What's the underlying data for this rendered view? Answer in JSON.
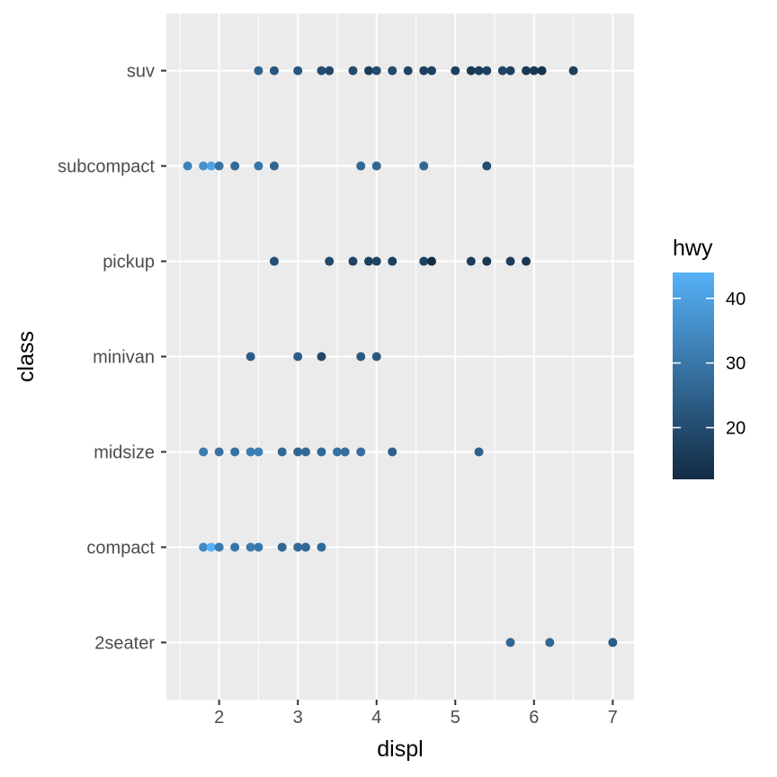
{
  "chart_data": {
    "type": "scatter",
    "xlabel": "displ",
    "ylabel": "class",
    "xlim": [
      1.33,
      7.27
    ],
    "x_ticks": [
      2,
      3,
      4,
      5,
      6,
      7
    ],
    "x_minor_ticks": [
      1.5,
      2.5,
      3.5,
      4.5,
      5.5,
      6.5
    ],
    "categories": [
      "2seater",
      "compact",
      "midsize",
      "minivan",
      "pickup",
      "subcompact",
      "suv"
    ],
    "grid": true,
    "panel_background": "#EBEBEB",
    "grid_color": "#FFFFFF",
    "legend": {
      "title": "hwy",
      "position": "right",
      "type": "colorbar",
      "range": [
        12,
        44
      ],
      "ticks": [
        20,
        30,
        40
      ],
      "low_color": "#132B43",
      "high_color": "#56B1F7"
    },
    "points": [
      {
        "x": 5.7,
        "y": "2seater",
        "hwy": 26
      },
      {
        "x": 6.2,
        "y": "2seater",
        "hwy": 26
      },
      {
        "x": 7.0,
        "y": "2seater",
        "hwy": 24
      },
      {
        "x": 1.8,
        "y": "compact",
        "hwy": 35
      },
      {
        "x": 1.9,
        "y": "compact",
        "hwy": 44
      },
      {
        "x": 2.0,
        "y": "compact",
        "hwy": 31
      },
      {
        "x": 2.2,
        "y": "compact",
        "hwy": 30
      },
      {
        "x": 2.4,
        "y": "compact",
        "hwy": 31
      },
      {
        "x": 2.5,
        "y": "compact",
        "hwy": 30
      },
      {
        "x": 2.8,
        "y": "compact",
        "hwy": 26
      },
      {
        "x": 3.0,
        "y": "compact",
        "hwy": 27
      },
      {
        "x": 3.1,
        "y": "compact",
        "hwy": 26
      },
      {
        "x": 3.3,
        "y": "compact",
        "hwy": 27
      },
      {
        "x": 1.8,
        "y": "midsize",
        "hwy": 31
      },
      {
        "x": 2.0,
        "y": "midsize",
        "hwy": 29
      },
      {
        "x": 2.2,
        "y": "midsize",
        "hwy": 29
      },
      {
        "x": 2.4,
        "y": "midsize",
        "hwy": 31
      },
      {
        "x": 2.5,
        "y": "midsize",
        "hwy": 32
      },
      {
        "x": 2.8,
        "y": "midsize",
        "hwy": 27
      },
      {
        "x": 3.0,
        "y": "midsize",
        "hwy": 26
      },
      {
        "x": 3.1,
        "y": "midsize",
        "hwy": 27
      },
      {
        "x": 3.3,
        "y": "midsize",
        "hwy": 27
      },
      {
        "x": 3.5,
        "y": "midsize",
        "hwy": 29
      },
      {
        "x": 3.6,
        "y": "midsize",
        "hwy": 28
      },
      {
        "x": 3.8,
        "y": "midsize",
        "hwy": 28
      },
      {
        "x": 4.2,
        "y": "midsize",
        "hwy": 25
      },
      {
        "x": 5.3,
        "y": "midsize",
        "hwy": 25
      },
      {
        "x": 2.4,
        "y": "minivan",
        "hwy": 24
      },
      {
        "x": 3.0,
        "y": "minivan",
        "hwy": 24
      },
      {
        "x": 3.3,
        "y": "minivan",
        "hwy": 19
      },
      {
        "x": 3.8,
        "y": "minivan",
        "hwy": 23
      },
      {
        "x": 4.0,
        "y": "minivan",
        "hwy": 23
      },
      {
        "x": 2.7,
        "y": "pickup",
        "hwy": 20
      },
      {
        "x": 3.4,
        "y": "pickup",
        "hwy": 19
      },
      {
        "x": 3.7,
        "y": "pickup",
        "hwy": 18
      },
      {
        "x": 3.9,
        "y": "pickup",
        "hwy": 17
      },
      {
        "x": 4.0,
        "y": "pickup",
        "hwy": 18
      },
      {
        "x": 4.2,
        "y": "pickup",
        "hwy": 17
      },
      {
        "x": 4.6,
        "y": "pickup",
        "hwy": 17
      },
      {
        "x": 4.7,
        "y": "pickup",
        "hwy": 12
      },
      {
        "x": 5.2,
        "y": "pickup",
        "hwy": 16
      },
      {
        "x": 5.4,
        "y": "pickup",
        "hwy": 15
      },
      {
        "x": 5.7,
        "y": "pickup",
        "hwy": 16
      },
      {
        "x": 5.9,
        "y": "pickup",
        "hwy": 15
      },
      {
        "x": 1.6,
        "y": "subcompact",
        "hwy": 33
      },
      {
        "x": 1.8,
        "y": "subcompact",
        "hwy": 36
      },
      {
        "x": 1.9,
        "y": "subcompact",
        "hwy": 41
      },
      {
        "x": 2.0,
        "y": "subcompact",
        "hwy": 29
      },
      {
        "x": 2.2,
        "y": "subcompact",
        "hwy": 27
      },
      {
        "x": 2.5,
        "y": "subcompact",
        "hwy": 30
      },
      {
        "x": 2.7,
        "y": "subcompact",
        "hwy": 26
      },
      {
        "x": 3.8,
        "y": "subcompact",
        "hwy": 26
      },
      {
        "x": 4.0,
        "y": "subcompact",
        "hwy": 26
      },
      {
        "x": 4.6,
        "y": "subcompact",
        "hwy": 26
      },
      {
        "x": 5.4,
        "y": "subcompact",
        "hwy": 20
      },
      {
        "x": 2.5,
        "y": "suv",
        "hwy": 25
      },
      {
        "x": 2.7,
        "y": "suv",
        "hwy": 22
      },
      {
        "x": 3.0,
        "y": "suv",
        "hwy": 22
      },
      {
        "x": 3.3,
        "y": "suv",
        "hwy": 20
      },
      {
        "x": 3.4,
        "y": "suv",
        "hwy": 19
      },
      {
        "x": 3.7,
        "y": "suv",
        "hwy": 19
      },
      {
        "x": 3.9,
        "y": "suv",
        "hwy": 16
      },
      {
        "x": 4.0,
        "y": "suv",
        "hwy": 20
      },
      {
        "x": 4.2,
        "y": "suv",
        "hwy": 19
      },
      {
        "x": 4.4,
        "y": "suv",
        "hwy": 18
      },
      {
        "x": 4.6,
        "y": "suv",
        "hwy": 17
      },
      {
        "x": 4.7,
        "y": "suv",
        "hwy": 17
      },
      {
        "x": 5.0,
        "y": "suv",
        "hwy": 17
      },
      {
        "x": 5.2,
        "y": "suv",
        "hwy": 15
      },
      {
        "x": 5.3,
        "y": "suv",
        "hwy": 16
      },
      {
        "x": 5.4,
        "y": "suv",
        "hwy": 17
      },
      {
        "x": 5.6,
        "y": "suv",
        "hwy": 18
      },
      {
        "x": 5.7,
        "y": "suv",
        "hwy": 17
      },
      {
        "x": 5.9,
        "y": "suv",
        "hwy": 15
      },
      {
        "x": 6.0,
        "y": "suv",
        "hwy": 15
      },
      {
        "x": 6.1,
        "y": "suv",
        "hwy": 14
      },
      {
        "x": 6.5,
        "y": "suv",
        "hwy": 17
      }
    ]
  }
}
